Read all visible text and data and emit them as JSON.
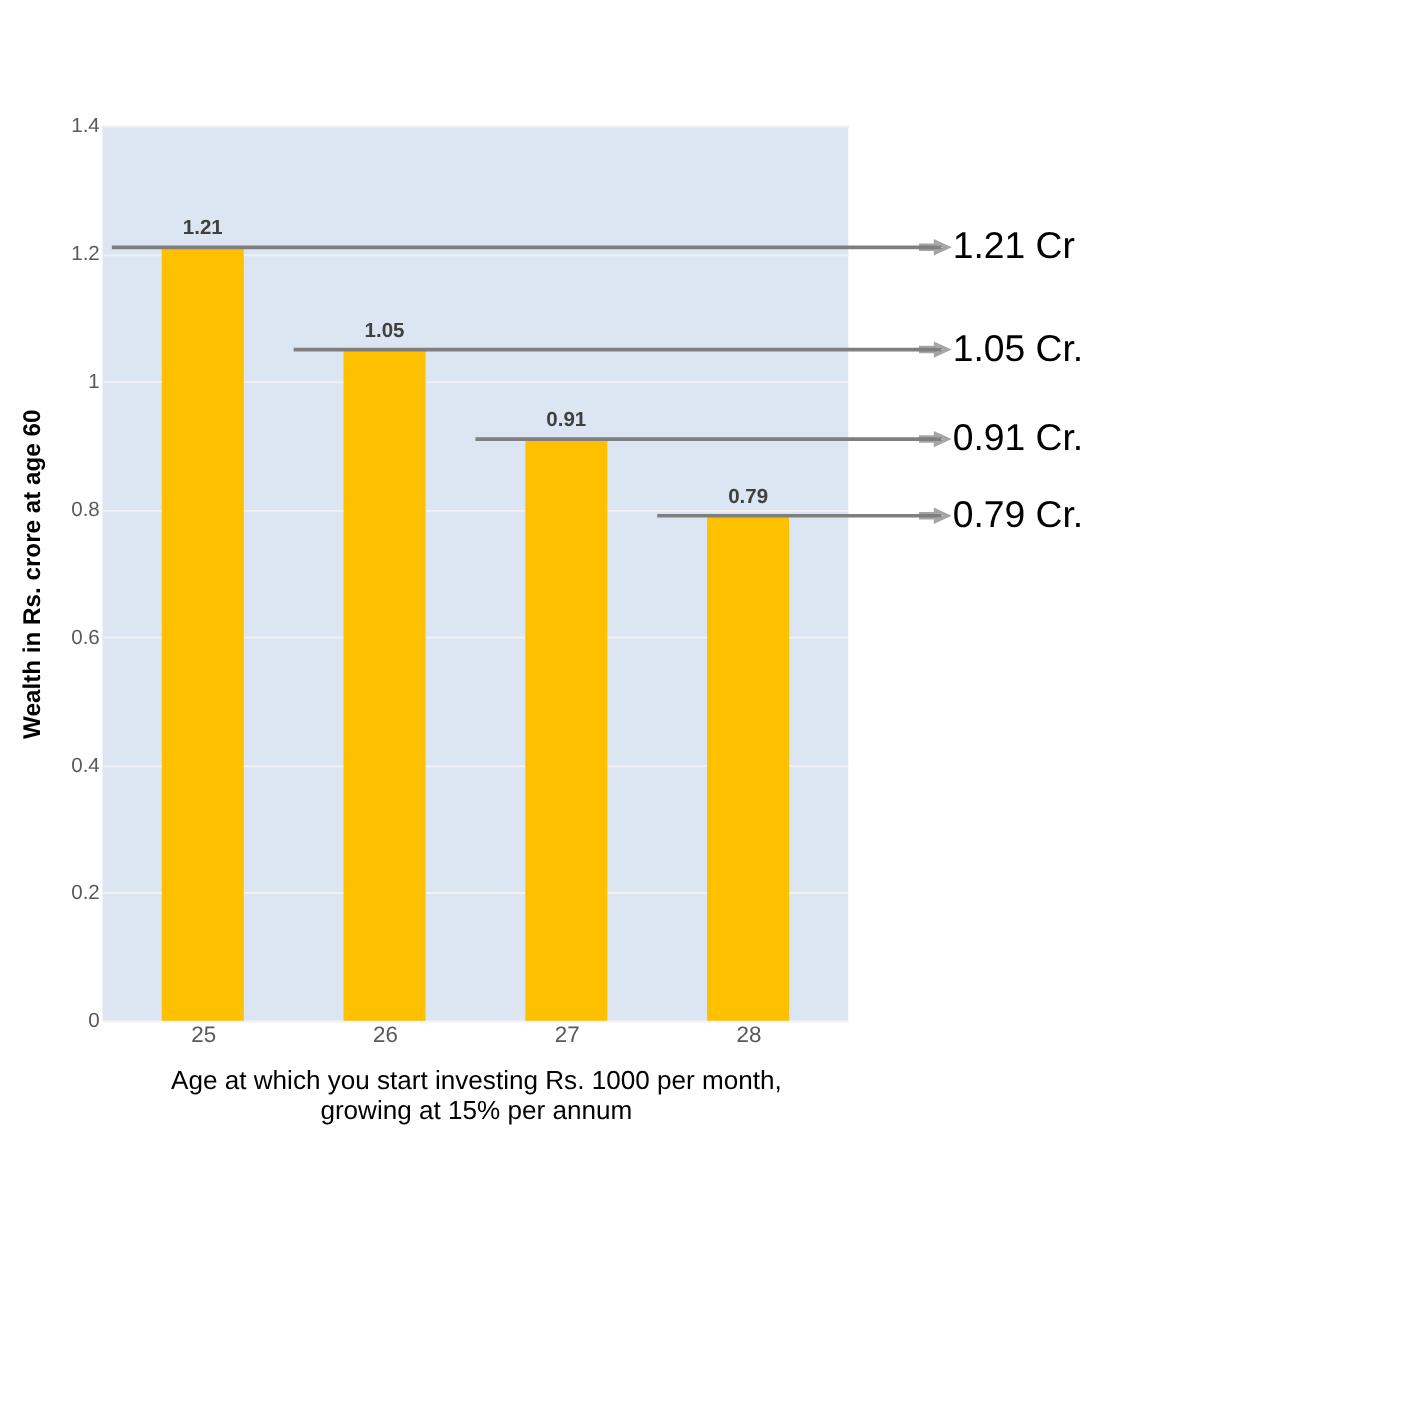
{
  "chart_data": {
    "type": "bar",
    "categories": [
      "25",
      "26",
      "27",
      "28"
    ],
    "values": [
      1.21,
      1.05,
      0.91,
      0.79
    ],
    "color": "#ffc000",
    "ylim": [
      0,
      1.4
    ],
    "yticks": [
      0,
      0.2,
      0.4,
      0.6,
      0.8,
      1,
      1.2,
      1.4
    ],
    "grid": "y",
    "data_labels": true,
    "xlabel": "Age at which you start investing Rs. 1000 per month, growing at 15% per annum",
    "ylabel": "Wealth in Rs. crore at age 60",
    "ref_lines": [
      {
        "axis": "y",
        "value": 1.21,
        "label": "1.21 Cr",
        "color": "#7f7f7f"
      },
      {
        "axis": "y",
        "value": 1.05,
        "label": "1.05 Cr.",
        "color": "#7f7f7f"
      },
      {
        "axis": "y",
        "value": 0.91,
        "label": "0.91 Cr.",
        "color": "#7f7f7f"
      },
      {
        "axis": "y",
        "value": 0.79,
        "label": "0.79 Cr.",
        "color": "#7f7f7f"
      }
    ]
  }
}
